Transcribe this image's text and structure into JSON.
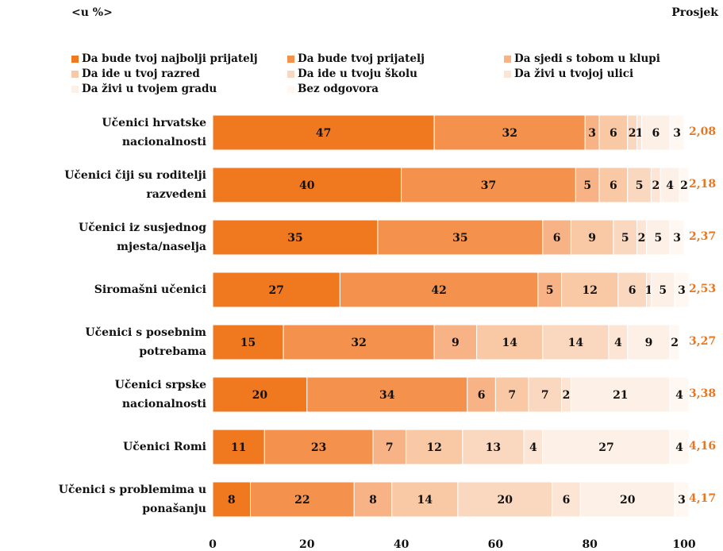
{
  "header": {
    "unit": "<u %>",
    "average_title": "Prosjek"
  },
  "chart_data": {
    "type": "bar",
    "orientation": "horizontal",
    "stacked": true,
    "categories": [
      "Učenici hrvatske nacionalnosti",
      "Učenici čiji su roditelji razvedeni",
      "Učenici iz susjednog mjesta/naselja",
      "Siromašni učenici",
      "Učenici s posebnim potrebama",
      "Učenici srpske nacionalnosti",
      "Učenici Romi",
      "Učenici s problemima u ponašanju"
    ],
    "series": [
      {
        "name": "Da bude tvoj najbolji prijatelj",
        "color": "#f07920",
        "values": [
          47,
          40,
          35,
          27,
          15,
          20,
          11,
          8
        ]
      },
      {
        "name": "Da bude tvoj prijatelj",
        "color": "#f4914c",
        "values": [
          32,
          37,
          35,
          42,
          32,
          34,
          23,
          22
        ]
      },
      {
        "name": "Da sjedi s tobom u klupi",
        "color": "#f7b386",
        "values": [
          3,
          5,
          6,
          5,
          9,
          6,
          7,
          8
        ]
      },
      {
        "name": "Da ide u tvoj razred",
        "color": "#f9c9a6",
        "values": [
          6,
          6,
          9,
          12,
          14,
          7,
          12,
          14
        ]
      },
      {
        "name": "Da ide u tvoju školu",
        "color": "#fad8bf",
        "values": [
          2,
          5,
          5,
          6,
          14,
          7,
          13,
          20
        ]
      },
      {
        "name": "Da živi u tvojoj ulici",
        "color": "#fce5d4",
        "values": [
          1,
          2,
          2,
          1,
          4,
          2,
          4,
          6
        ]
      },
      {
        "name": "Da živi u tvojem gradu",
        "color": "#fdf0e6",
        "values": [
          6,
          4,
          5,
          5,
          9,
          21,
          27,
          20
        ]
      },
      {
        "name": "Bez odgovora",
        "color": "#fff8f2",
        "values": [
          3,
          2,
          3,
          3,
          2,
          4,
          4,
          3
        ]
      }
    ],
    "averages": [
      "2,08",
      "2,18",
      "2,37",
      "2,53",
      "3,27",
      "3,38",
      "4,16",
      "4,17"
    ],
    "xlim": [
      0,
      100
    ],
    "x_ticks": [
      "0",
      "20",
      "40",
      "60",
      "80",
      "100"
    ],
    "legend_position": "top",
    "grid": false
  },
  "colors": {
    "average": "#e87722"
  }
}
